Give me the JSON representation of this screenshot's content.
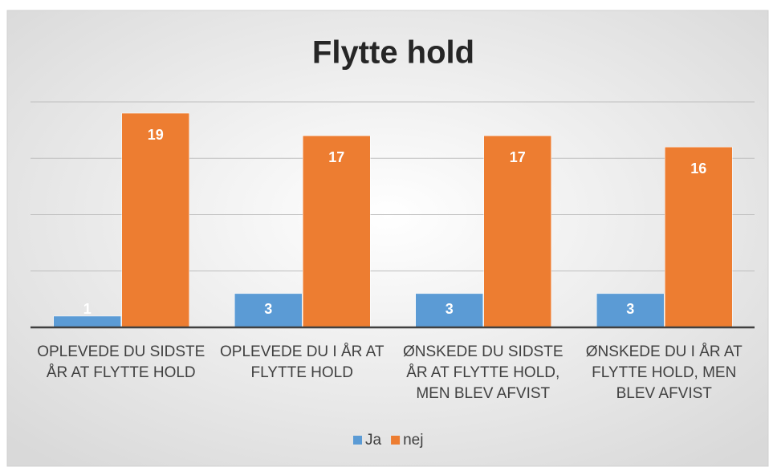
{
  "chart_data": {
    "type": "bar",
    "title": "Flytte hold",
    "categories": [
      "OPLEVEDE DU SIDSTE ÅR AT FLYTTE HOLD",
      "OPLEVEDE DU I ÅR AT FLYTTE HOLD",
      "ØNSKEDE DU SIDSTE ÅR AT FLYTTE HOLD, MEN BLEV AFVIST",
      "ØNSKEDE DU I ÅR AT FLYTTE HOLD, MEN BLEV AFVIST"
    ],
    "series": [
      {
        "name": "Ja",
        "color": "#5b9bd5",
        "values": [
          1,
          3,
          3,
          3
        ]
      },
      {
        "name": "nej",
        "color": "#ed7d31",
        "values": [
          19,
          17,
          17,
          16
        ]
      }
    ],
    "ylim": [
      0,
      20
    ],
    "yticks": [
      0,
      5,
      10,
      15,
      20
    ],
    "grid": true,
    "legend": "bottom"
  }
}
